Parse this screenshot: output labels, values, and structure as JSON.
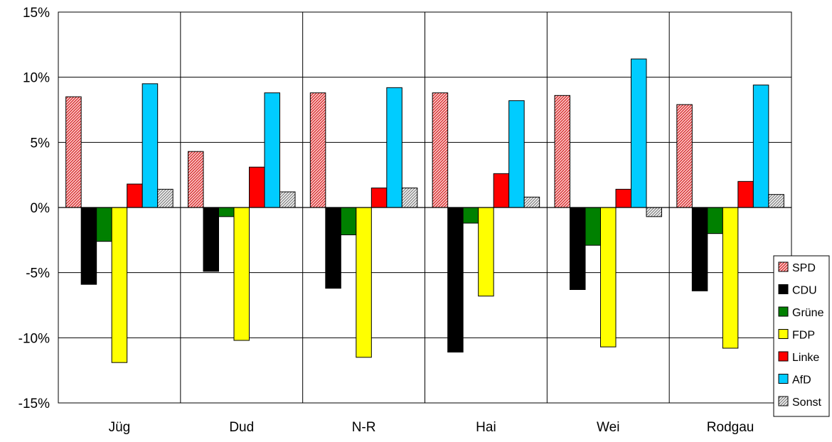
{
  "chart_data": {
    "type": "bar",
    "categories": [
      "Jüg",
      "Dud",
      "N-R",
      "Hai",
      "Wei",
      "Rodgau"
    ],
    "ylim": [
      -15,
      15
    ],
    "yticks": [
      15,
      10,
      5,
      0,
      -5,
      -10,
      -15
    ],
    "ytick_labels": [
      "15%",
      "10%",
      "5%",
      "0%",
      "-5%",
      "-10%",
      "-15%"
    ],
    "grid": true,
    "legend_position": "right",
    "series": [
      {
        "name": "SPD",
        "color": "#f08080",
        "pattern": "hatched-red",
        "values": [
          8.5,
          4.3,
          8.8,
          8.8,
          8.6,
          7.9
        ]
      },
      {
        "name": "CDU",
        "color": "#000000",
        "pattern": "solid",
        "values": [
          -5.9,
          -4.9,
          -6.2,
          -11.1,
          -6.3,
          -6.4
        ]
      },
      {
        "name": "Grüne",
        "color": "#008000",
        "pattern": "solid",
        "values": [
          -2.6,
          -0.7,
          -2.1,
          -1.2,
          -2.9,
          -2.0
        ]
      },
      {
        "name": "FDP",
        "color": "#ffff00",
        "pattern": "solid",
        "values": [
          -11.9,
          -10.2,
          -11.5,
          -6.8,
          -10.7,
          -10.8
        ]
      },
      {
        "name": "Linke",
        "color": "#ff0000",
        "pattern": "solid",
        "values": [
          1.8,
          3.1,
          1.5,
          2.6,
          1.4,
          2.0
        ]
      },
      {
        "name": "AfD",
        "color": "#00ccff",
        "pattern": "solid",
        "values": [
          9.5,
          8.8,
          9.2,
          8.2,
          11.4,
          9.4
        ]
      },
      {
        "name": "Sonst",
        "color": "#c0c0c0",
        "pattern": "hatched-gray",
        "values": [
          1.4,
          1.2,
          1.5,
          0.8,
          -0.7,
          1.0
        ]
      }
    ]
  }
}
